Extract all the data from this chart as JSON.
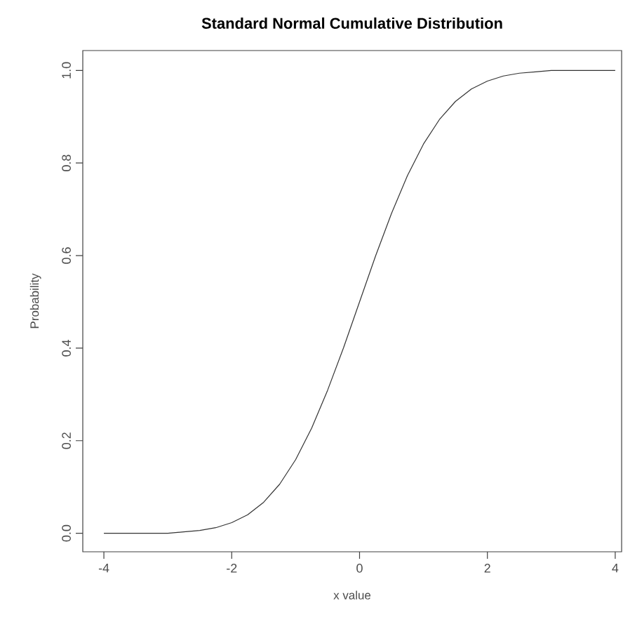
{
  "chart_data": {
    "type": "line",
    "title": "Standard Normal Cumulative Distribution",
    "xlabel": "x value",
    "ylabel": "Probability",
    "x": [
      -4,
      -3.5,
      -3,
      -2.75,
      -2.5,
      -2.25,
      -2,
      -1.75,
      -1.5,
      -1.25,
      -1,
      -0.75,
      -0.5,
      -0.25,
      0,
      0.25,
      0.5,
      0.75,
      1,
      1.25,
      1.5,
      1.75,
      2,
      2.25,
      2.5,
      2.75,
      3,
      3.5,
      4
    ],
    "series": [
      {
        "color": "#333333",
        "values": [
          0.0,
          0.0,
          0.0,
          0.003,
          0.006,
          0.012,
          0.023,
          0.04,
          0.067,
          0.106,
          0.159,
          0.227,
          0.309,
          0.401,
          0.5,
          0.599,
          0.691,
          0.773,
          0.841,
          0.894,
          0.933,
          0.96,
          0.977,
          0.988,
          0.994,
          0.997,
          1.0,
          1.0,
          1.0
        ]
      }
    ],
    "xlim": [
      -4.33,
      4.1
    ],
    "ylim": [
      -0.04,
      1.043
    ],
    "xticks": [
      -4,
      -2,
      0,
      2,
      4
    ],
    "yticks": [
      {
        "value": 0,
        "label": "0.0"
      },
      {
        "value": 0.2,
        "label": "0.2"
      },
      {
        "value": 0.4,
        "label": "0.4"
      },
      {
        "value": 0.6,
        "label": "0.6"
      },
      {
        "value": 0.8,
        "label": "0.8"
      },
      {
        "value": 1,
        "label": "1.0"
      }
    ],
    "marker": "none",
    "line_style": "solid"
  }
}
